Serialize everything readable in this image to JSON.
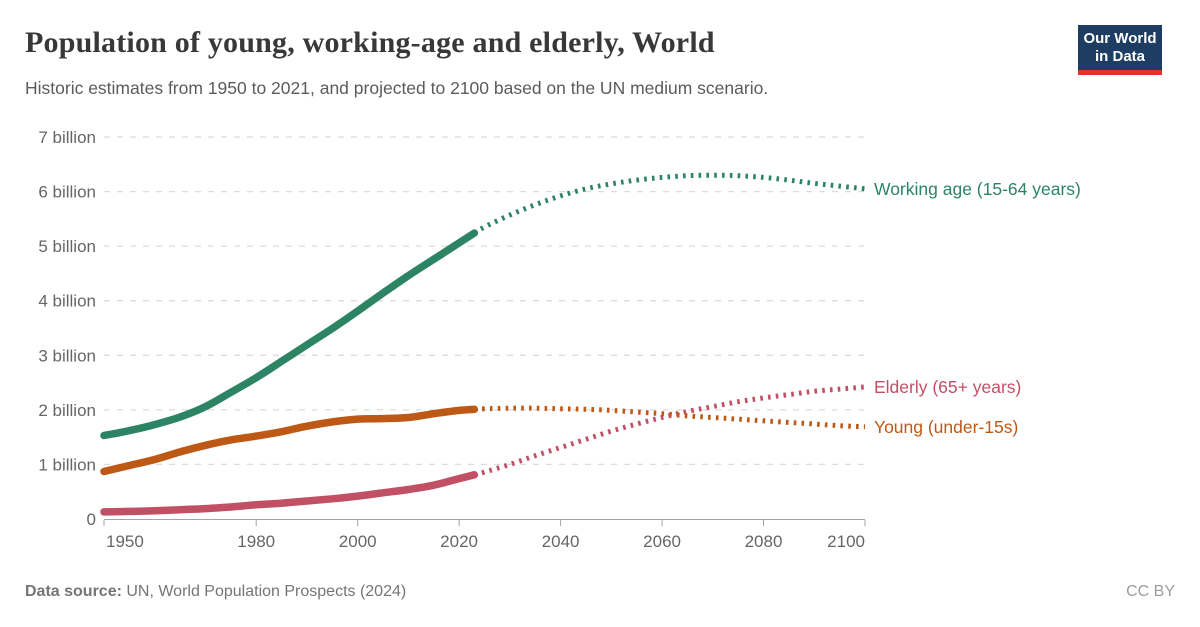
{
  "header": {
    "title": "Population of young, working-age and elderly, World",
    "subtitle": "Historic estimates from 1950 to 2021, and projected to 2100 based on the UN medium scenario.",
    "logo": {
      "line1": "Our World",
      "line2": "in Data",
      "bg_color": "#1d3d63",
      "accent_color": "#dc352c"
    }
  },
  "footer": {
    "source_label": "Data source:",
    "source_text": " UN, World Population Prospects (2024)",
    "license": "CC BY"
  },
  "chart_data": {
    "type": "line",
    "title": "Population of young, working-age and elderly, World",
    "xlabel": "",
    "ylabel": "",
    "x_range": [
      1950,
      2100
    ],
    "y_range": [
      0,
      7
    ],
    "grid": true,
    "legend_position": "right-of-line-ends",
    "x_ticks": [
      1950,
      1980,
      2000,
      2020,
      2040,
      2060,
      2080,
      2100
    ],
    "y_ticks": [
      {
        "value": 0,
        "label": "0"
      },
      {
        "value": 1,
        "label": "1 billion"
      },
      {
        "value": 2,
        "label": "2 billion"
      },
      {
        "value": 3,
        "label": "3 billion"
      },
      {
        "value": 4,
        "label": "4 billion"
      },
      {
        "value": 5,
        "label": "5 billion"
      },
      {
        "value": 6,
        "label": "6 billion"
      },
      {
        "value": 7,
        "label": "7 billion"
      }
    ],
    "projection_start_year": 2023,
    "units": "billion people",
    "axis_color": "#a3a3a3",
    "grid_color": "#dcdcdc",
    "series": [
      {
        "name": "Working age (15-64 years)",
        "color": "#2c8465",
        "years": [
          1950,
          1955,
          1960,
          1965,
          1970,
          1975,
          1980,
          1985,
          1990,
          1995,
          2000,
          2005,
          2010,
          2015,
          2020,
          2023,
          2025,
          2030,
          2035,
          2040,
          2045,
          2050,
          2055,
          2060,
          2065,
          2070,
          2075,
          2080,
          2085,
          2090,
          2095,
          2100
        ],
        "values": [
          1.53,
          1.62,
          1.73,
          1.87,
          2.06,
          2.32,
          2.59,
          2.89,
          3.19,
          3.49,
          3.81,
          4.14,
          4.46,
          4.76,
          5.06,
          5.24,
          5.35,
          5.57,
          5.76,
          5.92,
          6.05,
          6.14,
          6.21,
          6.26,
          6.29,
          6.3,
          6.29,
          6.26,
          6.21,
          6.15,
          6.1,
          6.05
        ]
      },
      {
        "name": "Elderly (65+ years)",
        "color": "#c15065",
        "years": [
          1950,
          1955,
          1960,
          1965,
          1970,
          1975,
          1980,
          1985,
          1990,
          1995,
          2000,
          2005,
          2010,
          2015,
          2020,
          2023,
          2025,
          2030,
          2035,
          2040,
          2045,
          2050,
          2055,
          2060,
          2065,
          2070,
          2075,
          2080,
          2085,
          2090,
          2095,
          2100
        ],
        "values": [
          0.13,
          0.14,
          0.15,
          0.17,
          0.19,
          0.22,
          0.26,
          0.29,
          0.33,
          0.37,
          0.42,
          0.48,
          0.54,
          0.62,
          0.74,
          0.81,
          0.86,
          1.0,
          1.16,
          1.31,
          1.46,
          1.61,
          1.74,
          1.86,
          1.97,
          2.06,
          2.15,
          2.22,
          2.28,
          2.34,
          2.38,
          2.42
        ]
      },
      {
        "name": "Young (under-15s)",
        "color": "#be5915",
        "years": [
          1950,
          1955,
          1960,
          1965,
          1970,
          1975,
          1980,
          1985,
          1990,
          1995,
          2000,
          2005,
          2010,
          2015,
          2020,
          2023,
          2025,
          2030,
          2035,
          2040,
          2045,
          2050,
          2055,
          2060,
          2065,
          2070,
          2075,
          2080,
          2085,
          2090,
          2095,
          2100
        ],
        "values": [
          0.87,
          0.98,
          1.09,
          1.23,
          1.35,
          1.45,
          1.52,
          1.6,
          1.7,
          1.78,
          1.83,
          1.84,
          1.86,
          1.93,
          1.99,
          2.01,
          2.02,
          2.03,
          2.03,
          2.02,
          2.01,
          1.99,
          1.96,
          1.93,
          1.89,
          1.86,
          1.83,
          1.8,
          1.77,
          1.74,
          1.71,
          1.69
        ]
      }
    ]
  }
}
